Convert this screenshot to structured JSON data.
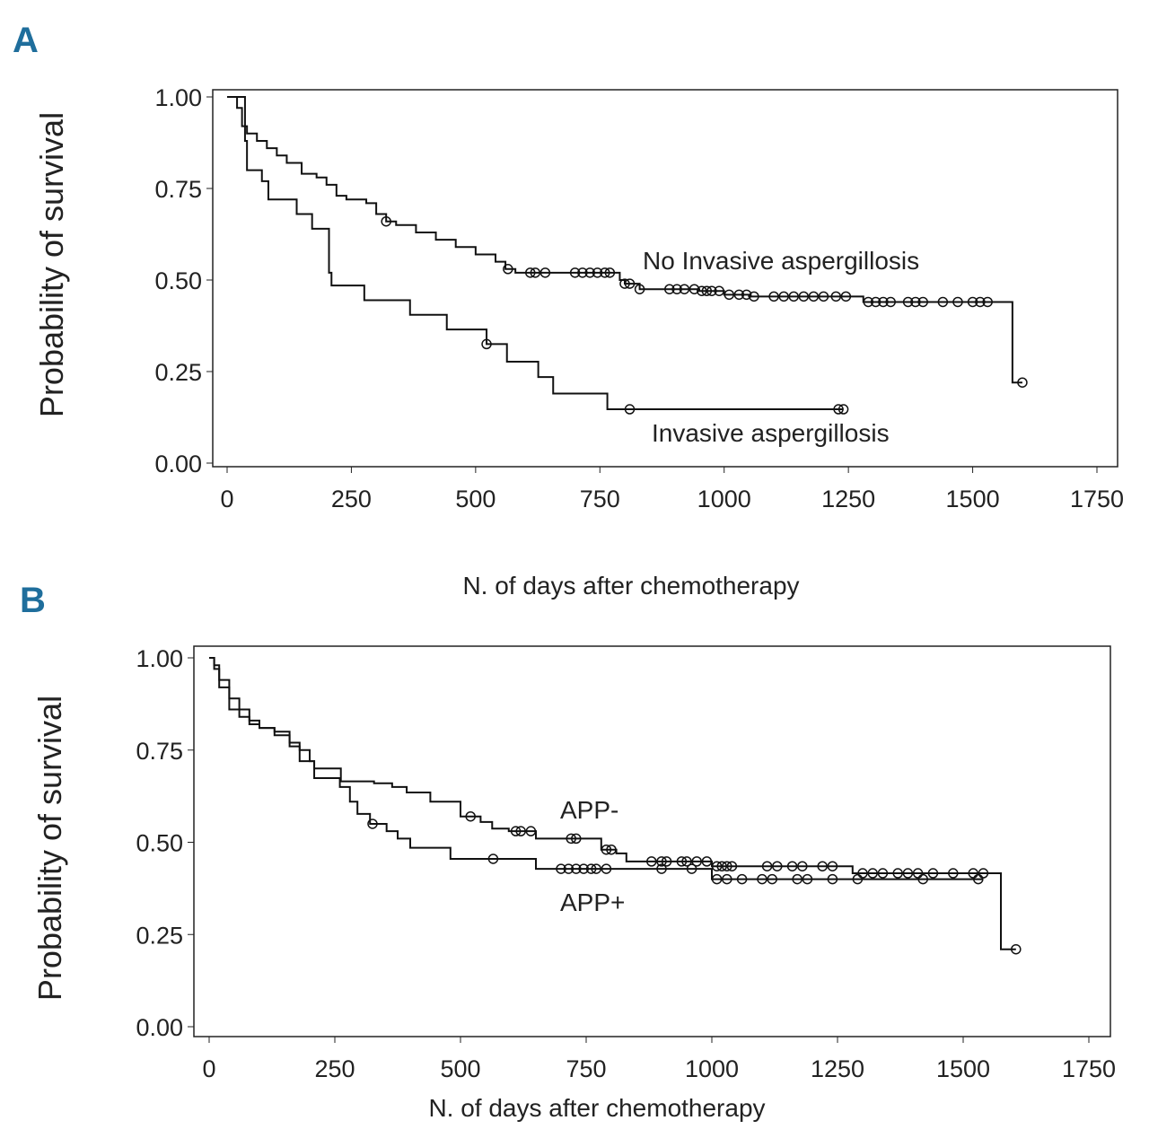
{
  "chart_data": [
    {
      "panel": "A",
      "type": "line",
      "subtype": "kaplan-meier",
      "xlabel": "N. of days after chemotherapy",
      "ylabel": "Probability of survival",
      "xlim": [
        0,
        1750
      ],
      "ylim": [
        0,
        1
      ],
      "xticks": [
        "0",
        "250",
        "500",
        "750",
        "1000",
        "1250",
        "1500",
        "1750"
      ],
      "yticks": [
        "0.00",
        "0.25",
        "0.50",
        "0.75",
        "1.00"
      ],
      "series": [
        {
          "name": "No Invasive aspergillosis",
          "steps": [
            [
              0,
              1
            ],
            [
              10,
              1
            ],
            [
              20,
              0.97
            ],
            [
              30,
              0.92
            ],
            [
              40,
              0.9
            ],
            [
              60,
              0.88
            ],
            [
              80,
              0.86
            ],
            [
              100,
              0.84
            ],
            [
              120,
              0.82
            ],
            [
              150,
              0.79
            ],
            [
              180,
              0.78
            ],
            [
              200,
              0.76
            ],
            [
              220,
              0.73
            ],
            [
              240,
              0.72
            ],
            [
              280,
              0.71
            ],
            [
              300,
              0.68
            ],
            [
              320,
              0.66
            ],
            [
              340,
              0.65
            ],
            [
              380,
              0.63
            ],
            [
              420,
              0.61
            ],
            [
              460,
              0.59
            ],
            [
              500,
              0.57
            ],
            [
              540,
              0.55
            ],
            [
              560,
              0.53
            ],
            [
              580,
              0.52
            ],
            [
              790,
              0.5
            ],
            [
              800,
              0.49
            ],
            [
              830,
              0.475
            ],
            [
              950,
              0.47
            ],
            [
              1000,
              0.46
            ],
            [
              1050,
              0.455
            ],
            [
              1280,
              0.44
            ],
            [
              1580,
              0.22
            ],
            [
              1600,
              0.22
            ]
          ],
          "censored": [
            320,
            565,
            610,
            620,
            640,
            700,
            715,
            730,
            745,
            760,
            770,
            800,
            810,
            830,
            890,
            905,
            920,
            940,
            955,
            965,
            975,
            990,
            1010,
            1030,
            1045,
            1060,
            1100,
            1120,
            1140,
            1160,
            1180,
            1200,
            1225,
            1245,
            1290,
            1305,
            1320,
            1335,
            1370,
            1385,
            1400,
            1440,
            1470,
            1500,
            1515,
            1530,
            1600
          ]
        },
        {
          "name": "Invasive aspergillosis",
          "steps": [
            [
              0,
              1
            ],
            [
              10,
              1
            ],
            [
              36,
              0.88
            ],
            [
              40,
              0.8
            ],
            [
              70,
              0.77
            ],
            [
              83,
              0.72
            ],
            [
              140,
              0.68
            ],
            [
              171,
              0.64
            ],
            [
              205,
              0.52
            ],
            [
              210,
              0.485
            ],
            [
              276,
              0.445
            ],
            [
              368,
              0.405
            ],
            [
              442,
              0.365
            ],
            [
              522,
              0.325
            ],
            [
              563,
              0.277
            ],
            [
              626,
              0.235
            ],
            [
              656,
              0.19
            ],
            [
              765,
              0.147
            ],
            [
              1240,
              0.147
            ]
          ],
          "censored": [
            522,
            810,
            1230,
            1240
          ]
        }
      ]
    },
    {
      "panel": "B",
      "type": "line",
      "subtype": "kaplan-meier",
      "xlabel": "N. of days after chemotherapy",
      "ylabel": "Probability of survival",
      "xlim": [
        0,
        1750
      ],
      "ylim": [
        0,
        1
      ],
      "xticks": [
        "0",
        "250",
        "500",
        "750",
        "1000",
        "1250",
        "1500",
        "1750"
      ],
      "yticks": [
        "0.00",
        "0.25",
        "0.50",
        "0.75",
        "1.00"
      ],
      "series": [
        {
          "name": "APP-",
          "steps": [
            [
              0,
              1
            ],
            [
              10,
              0.98
            ],
            [
              20,
              0.94
            ],
            [
              40,
              0.89
            ],
            [
              60,
              0.86
            ],
            [
              80,
              0.83
            ],
            [
              100,
              0.81
            ],
            [
              130,
              0.8
            ],
            [
              160,
              0.77
            ],
            [
              180,
              0.75
            ],
            [
              200,
              0.72
            ],
            [
              209,
              0.7
            ],
            [
              262,
              0.665
            ],
            [
              328,
              0.66
            ],
            [
              364,
              0.65
            ],
            [
              393,
              0.635
            ],
            [
              440,
              0.61
            ],
            [
              500,
              0.57
            ],
            [
              540,
              0.555
            ],
            [
              563,
              0.537
            ],
            [
              596,
              0.53
            ],
            [
              650,
              0.51
            ],
            [
              780,
              0.48
            ],
            [
              810,
              0.47
            ],
            [
              830,
              0.448
            ],
            [
              1000,
              0.435
            ],
            [
              1280,
              0.416
            ],
            [
              1575,
              0.21
            ],
            [
              1605,
              0.21
            ]
          ],
          "censored": [
            520,
            610,
            620,
            640,
            720,
            730,
            790,
            800,
            880,
            900,
            910,
            940,
            950,
            970,
            990,
            1010,
            1020,
            1030,
            1040,
            1110,
            1130,
            1160,
            1180,
            1220,
            1240,
            1300,
            1320,
            1340,
            1370,
            1390,
            1410,
            1440,
            1480,
            1520,
            1540,
            1605
          ]
        },
        {
          "name": "APP+",
          "steps": [
            [
              0,
              1
            ],
            [
              10,
              0.97
            ],
            [
              20,
              0.92
            ],
            [
              40,
              0.86
            ],
            [
              60,
              0.84
            ],
            [
              80,
              0.82
            ],
            [
              100,
              0.81
            ],
            [
              130,
              0.79
            ],
            [
              160,
              0.76
            ],
            [
              180,
              0.72
            ],
            [
              209,
              0.674
            ],
            [
              260,
              0.65
            ],
            [
              280,
              0.61
            ],
            [
              295,
              0.577
            ],
            [
              320,
              0.55
            ],
            [
              353,
              0.53
            ],
            [
              375,
              0.51
            ],
            [
              400,
              0.485
            ],
            [
              480,
              0.455
            ],
            [
              650,
              0.428
            ],
            [
              1000,
              0.4
            ],
            [
              1540,
              0.4
            ]
          ],
          "censored": [
            325,
            565,
            700,
            715,
            730,
            745,
            760,
            770,
            790,
            900,
            960,
            1010,
            1030,
            1060,
            1100,
            1120,
            1170,
            1190,
            1240,
            1290,
            1420,
            1530
          ]
        }
      ]
    }
  ],
  "labels": {
    "panel_a": "A",
    "panel_b": "B",
    "a_series_1": "No Invasive aspergillosis",
    "a_series_2": "Invasive aspergillosis",
    "b_series_1": "APP-",
    "b_series_2": "APP+",
    "xlabel": "N. of days after chemotherapy",
    "ylabel": "Probability of survival"
  }
}
